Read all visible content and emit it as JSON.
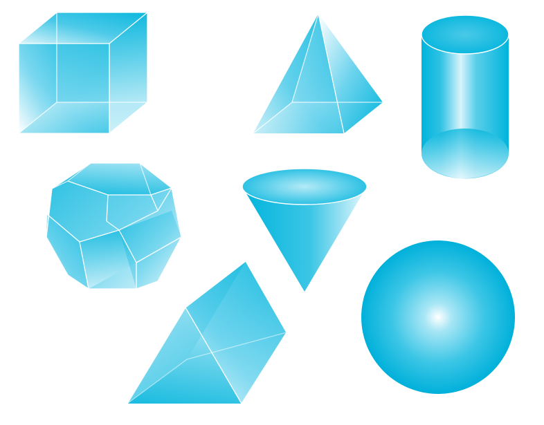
{
  "palette": {
    "deep": "#00b4dc",
    "mid": "#3cc6e6",
    "light": "#a8e6f5",
    "pale": "#e6f8fd",
    "white": "#ffffff"
  },
  "shapes": [
    {
      "name": "cube",
      "icon": "cube-icon"
    },
    {
      "name": "pyramid",
      "icon": "pyramid-icon"
    },
    {
      "name": "cylinder",
      "icon": "cylinder-icon"
    },
    {
      "name": "dodecahedron",
      "icon": "dodecahedron-icon"
    },
    {
      "name": "cone",
      "icon": "cone-icon"
    },
    {
      "name": "triangular-prism",
      "icon": "triangular-prism-icon"
    },
    {
      "name": "sphere",
      "icon": "sphere-icon"
    }
  ]
}
